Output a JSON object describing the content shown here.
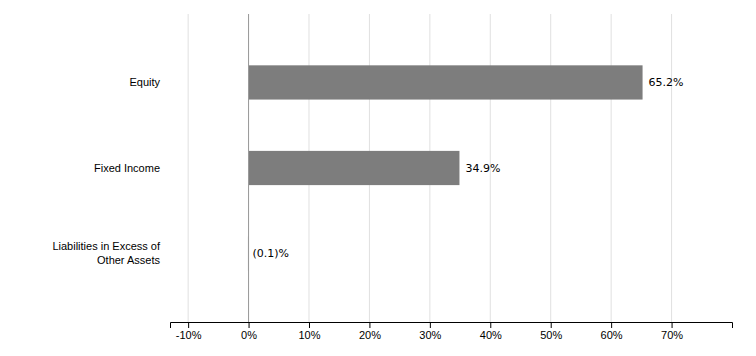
{
  "chart_data": {
    "type": "bar",
    "orientation": "horizontal",
    "categories": [
      "Liabilities in Excess of\nOther Assets",
      "Fixed Income",
      "Equity"
    ],
    "values": [
      -0.1,
      34.9,
      65.2
    ],
    "value_labels": [
      "(0.1)%",
      "34.9%",
      "65.2%"
    ],
    "data_labels": true,
    "color": "#7d7d7d",
    "xlim": [
      -13,
      80
    ],
    "xticks": [
      {
        "value": -10,
        "label": "-10%"
      },
      {
        "value": 0,
        "label": "0%"
      },
      {
        "value": 10,
        "label": "10%"
      },
      {
        "value": 20,
        "label": "20%"
      },
      {
        "value": 30,
        "label": "30%"
      },
      {
        "value": 40,
        "label": "40%"
      },
      {
        "value": 50,
        "label": "50%"
      },
      {
        "value": 60,
        "label": "60%"
      },
      {
        "value": 70,
        "label": "70%"
      }
    ],
    "grid": true
  }
}
